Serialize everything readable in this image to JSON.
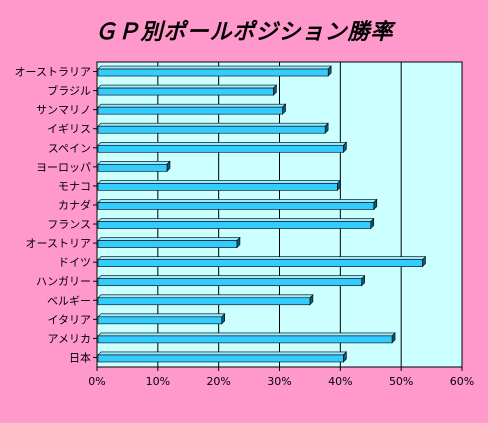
{
  "chart_data": {
    "type": "bar",
    "orientation": "horizontal",
    "title": "ＧＰ別ポールポジション勝率",
    "categories": [
      "オーストラリア",
      "ブラジル",
      "サンマリノ",
      "イギリス",
      "スペイン",
      "ヨーロッパ",
      "モナコ",
      "カナダ",
      "フランス",
      "オーストリア",
      "ドイツ",
      "ハンガリー",
      "ベルギー",
      "イタリア",
      "アメリカ",
      "日本"
    ],
    "values": [
      38,
      29,
      30.5,
      37.5,
      40.5,
      11.5,
      39.5,
      45.5,
      45,
      23,
      53.5,
      43.5,
      35,
      20.5,
      48.5,
      40.5
    ],
    "xlim": [
      0,
      60
    ],
    "xticks": [
      "0%",
      "10%",
      "20%",
      "30%",
      "40%",
      "50%",
      "60%"
    ],
    "grid": true,
    "legend": "none",
    "colors": {
      "background": "#ff99cc",
      "plot_area": "#ccffff",
      "bar_face": "#33ccff",
      "bar_top": "#99ecff",
      "bar_side": "#0a5a78"
    }
  }
}
